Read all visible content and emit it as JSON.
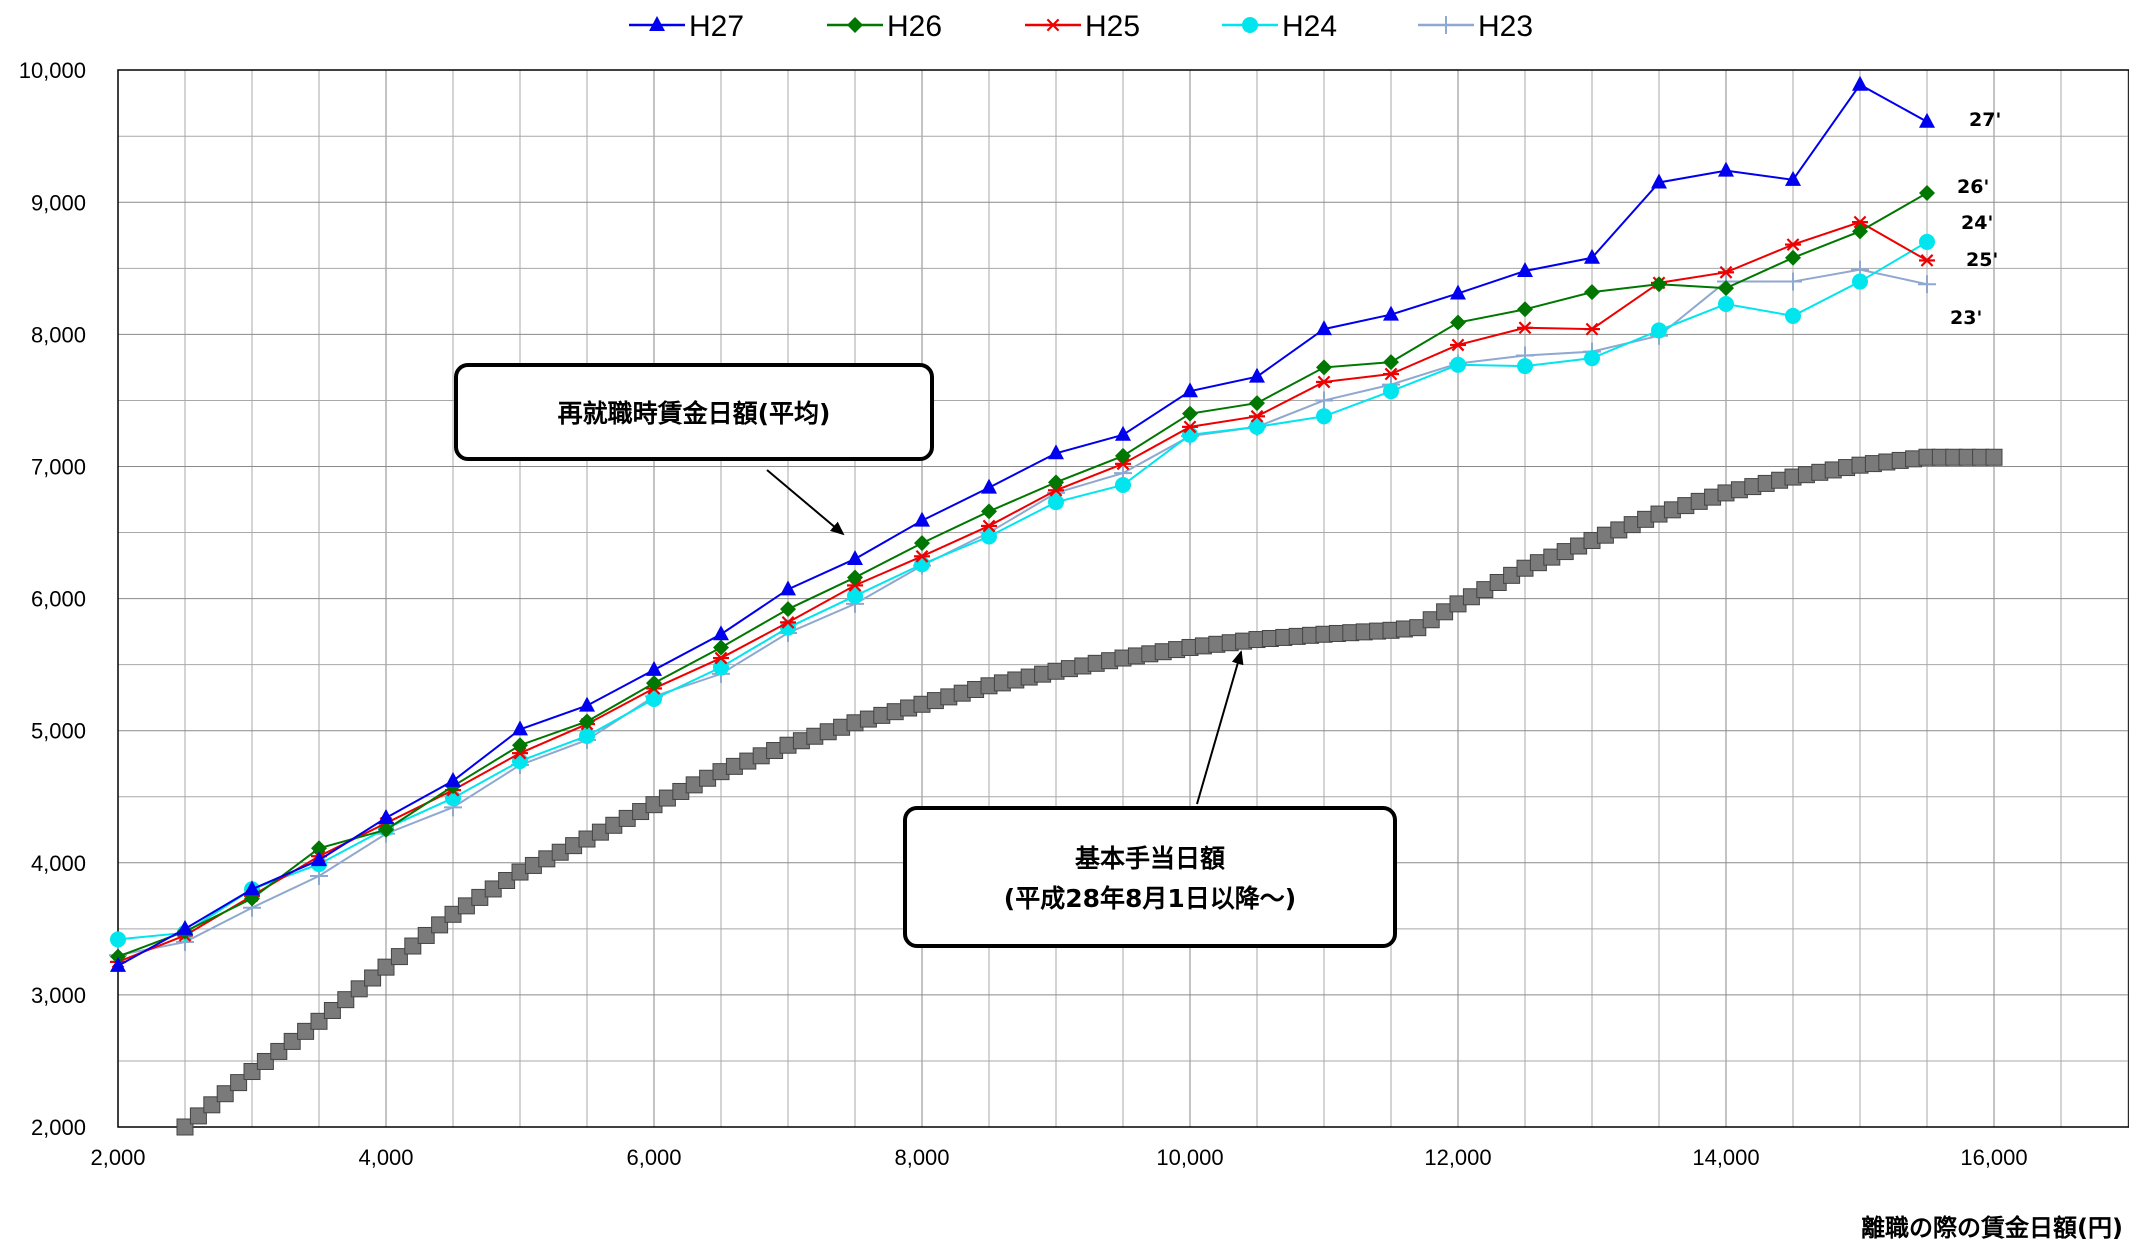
{
  "chart_data": {
    "type": "line",
    "xlabel": "離職の際の賃金日額(円)",
    "ylabel": "",
    "xlim": [
      2000,
      16000
    ],
    "ylim": [
      2000,
      10000
    ],
    "x_ticks": [
      "2,000",
      "4,000",
      "6,000",
      "8,000",
      "10,000",
      "12,000",
      "14,000",
      "16,000"
    ],
    "y_ticks": [
      "2,000",
      "3,000",
      "4,000",
      "5,000",
      "6,000",
      "7,000",
      "8,000",
      "9,000",
      "10,000"
    ],
    "grid": true,
    "legend_position": "top",
    "x": [
      2000,
      2500,
      3000,
      3500,
      4000,
      4500,
      5000,
      5500,
      6000,
      6500,
      7000,
      7500,
      8000,
      8500,
      9000,
      9500,
      10000,
      10500,
      11000,
      11500,
      12000,
      12500,
      13000,
      13500,
      14000,
      14500,
      15000,
      15500
    ],
    "series": [
      {
        "name": "H27",
        "color": "#0000ee",
        "marker": "triangle",
        "end_label": "27'",
        "values": [
          3220,
          3500,
          3800,
          4020,
          4340,
          4620,
          5010,
          5190,
          5460,
          5730,
          6070,
          6300,
          6590,
          6840,
          7100,
          7240,
          7570,
          7680,
          8040,
          8150,
          8310,
          8480,
          8580,
          9150,
          9240,
          9170,
          9890,
          9610
        ]
      },
      {
        "name": "H26",
        "color": "#007700",
        "marker": "diamond",
        "end_label": "26'",
        "values": [
          3290,
          3480,
          3730,
          4110,
          4250,
          4580,
          4890,
          5070,
          5360,
          5630,
          5920,
          6160,
          6420,
          6660,
          6880,
          7080,
          7400,
          7480,
          7750,
          7790,
          8090,
          8190,
          8320,
          8380,
          8350,
          8580,
          8780,
          9070
        ]
      },
      {
        "name": "H25",
        "color": "#ee0000",
        "marker": "asterisk",
        "end_label": "25'",
        "values": [
          3250,
          3450,
          3750,
          4050,
          4300,
          4550,
          4830,
          5050,
          5320,
          5550,
          5820,
          6100,
          6320,
          6550,
          6820,
          7020,
          7300,
          7380,
          7640,
          7700,
          7920,
          8050,
          8040,
          8390,
          8470,
          8680,
          8850,
          8560
        ]
      },
      {
        "name": "H24",
        "color": "#00e5ee",
        "marker": "circle",
        "end_label": "24'",
        "values": [
          3420,
          3470,
          3800,
          3990,
          4260,
          4490,
          4770,
          4960,
          5240,
          5480,
          5780,
          6020,
          6260,
          6470,
          6730,
          6860,
          7240,
          7300,
          7380,
          7570,
          7770,
          7760,
          7820,
          8030,
          8230,
          8140,
          8400,
          8700
        ]
      },
      {
        "name": "H23",
        "color": "#8fa8d0",
        "marker": "plus",
        "end_label": "23'",
        "values": [
          3300,
          3400,
          3660,
          3900,
          4220,
          4420,
          4740,
          4930,
          5260,
          5430,
          5740,
          5960,
          6250,
          6500,
          6800,
          6950,
          7230,
          7300,
          7500,
          7620,
          7780,
          7840,
          7870,
          7990,
          8400,
          8400,
          8490,
          8380
        ]
      }
    ],
    "basic_allowance": {
      "name": "基本手当日額",
      "color": "#7a7a7a",
      "marker": "square",
      "points": [
        [
          2500,
          2000
        ],
        [
          3000,
          2420
        ],
        [
          3500,
          2800
        ],
        [
          4000,
          3210
        ],
        [
          4500,
          3610
        ],
        [
          5000,
          3930
        ],
        [
          5500,
          4180
        ],
        [
          6000,
          4440
        ],
        [
          6500,
          4690
        ],
        [
          7000,
          4890
        ],
        [
          7500,
          5060
        ],
        [
          8000,
          5200
        ],
        [
          8500,
          5340
        ],
        [
          9000,
          5450
        ],
        [
          9500,
          5550
        ],
        [
          10000,
          5630
        ],
        [
          10500,
          5690
        ],
        [
          11000,
          5730
        ],
        [
          11500,
          5760
        ],
        [
          11700,
          5780
        ],
        [
          12000,
          5960
        ],
        [
          12500,
          6230
        ],
        [
          13000,
          6440
        ],
        [
          13500,
          6640
        ],
        [
          14000,
          6800
        ],
        [
          14500,
          6920
        ],
        [
          15000,
          7010
        ],
        [
          15500,
          7070
        ],
        [
          16000,
          7070
        ]
      ]
    },
    "annotations": [
      {
        "id": "wage",
        "text_lines": [
          "再就職時賃金日額(平均)"
        ]
      },
      {
        "id": "basic",
        "text_lines": [
          "基本手当日額",
          "(平成28年8月1日以降～)"
        ]
      }
    ]
  }
}
